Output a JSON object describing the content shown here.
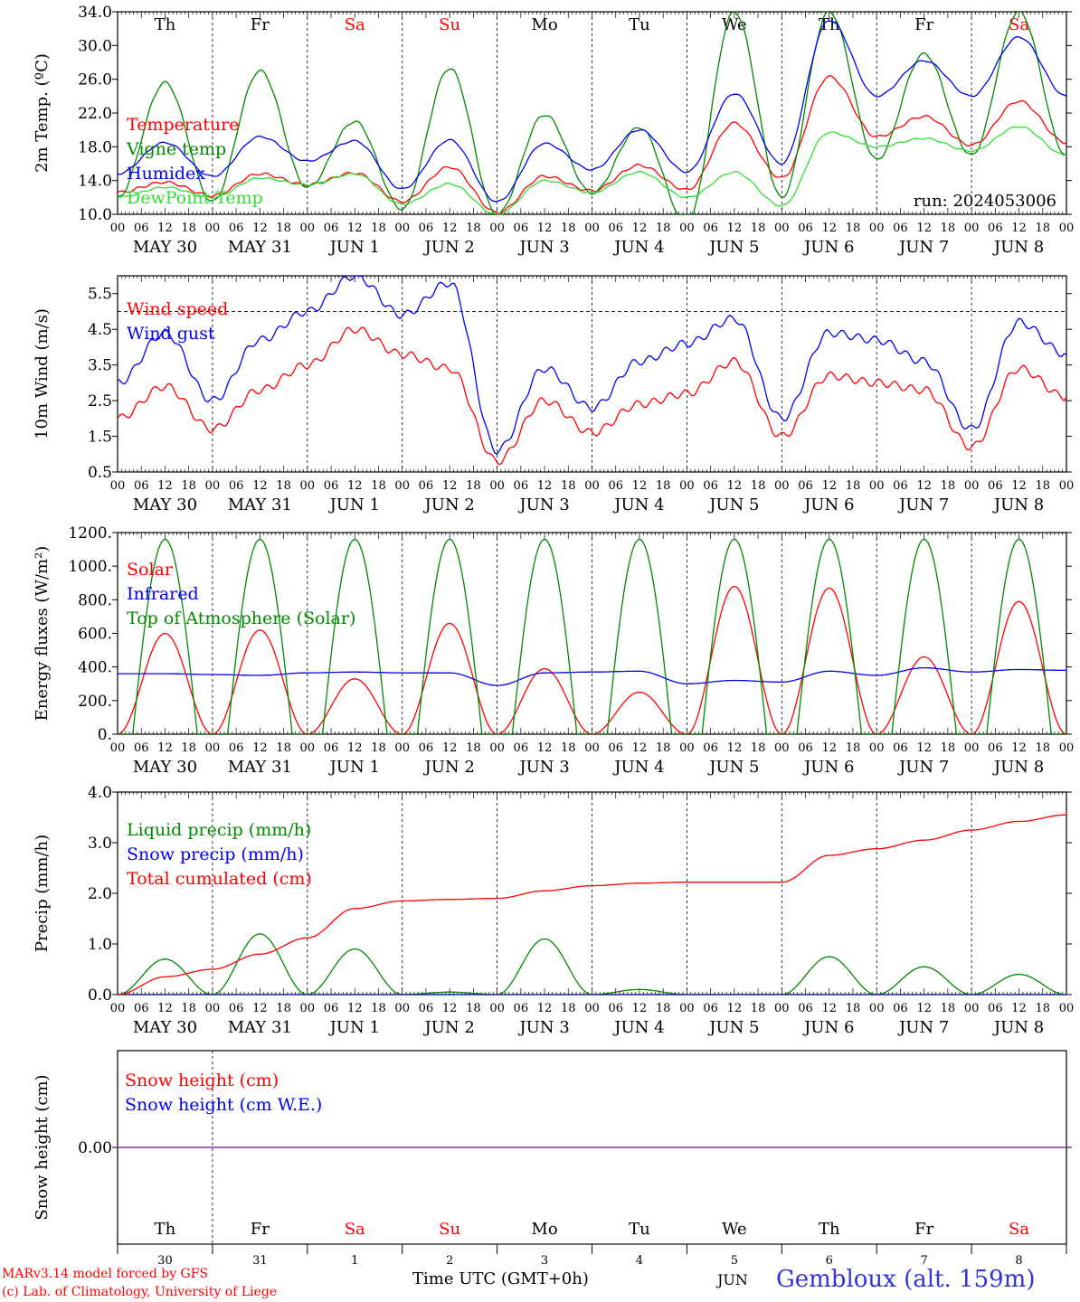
{
  "footer": {
    "credit_line1": "MARv3.14 model forced by GFS",
    "credit_line2": "(c) Lab. of Climatology, University of Liege",
    "xlabel": "Time UTC (GMT+0h)",
    "month_label": "JUN",
    "station": "Gembloux (alt. 159m)"
  },
  "axis": {
    "hours": [
      "00",
      "06",
      "12",
      "18"
    ],
    "day_names": [
      "Th",
      "Fr",
      "Sa",
      "Su",
      "Mo",
      "Tu",
      "We",
      "Th",
      "Fr",
      "Sa"
    ],
    "weekend_days": [
      2,
      3,
      9
    ],
    "dates": [
      "MAY 30",
      "MAY 31",
      "JUN  1",
      "JUN  2",
      "JUN  3",
      "JUN  4",
      "JUN  5",
      "JUN  6",
      "JUN  7",
      "JUN  8"
    ],
    "short_dates": [
      "30",
      "31",
      "1",
      "2",
      "3",
      "4",
      "5",
      "6",
      "7",
      "8"
    ]
  },
  "colors": {
    "red": "#ff0000",
    "green": "#008800",
    "blue": "#0000ee",
    "lightgreen": "#33dd33",
    "purple": "#883399"
  },
  "chart_data": [
    {
      "type": "line",
      "ylabel": "2m Temp. (ºC)",
      "ylim": [
        10.0,
        34.0
      ],
      "yticks": [
        "10.0",
        "14.0",
        "18.0",
        "22.0",
        "26.0",
        "30.0",
        "34.0"
      ],
      "annotation": "run: 2024053006",
      "x_days": [
        0,
        0.5,
        1,
        1.5,
        2,
        2.5,
        3,
        3.5,
        4,
        4.5,
        5,
        5.5,
        6,
        6.5,
        7,
        7.5,
        8,
        8.5,
        9,
        9.5,
        10
      ],
      "series": [
        {
          "name": "Temperature",
          "color": "#ff0000",
          "values": [
            12.6,
            13.8,
            12.2,
            14.8,
            13.5,
            14.9,
            11.5,
            15.6,
            10.2,
            14.5,
            12.8,
            15.8,
            12.9,
            20.8,
            14.3,
            26.3,
            19.2,
            21.6,
            18.2,
            23.4,
            18.5
          ]
        },
        {
          "name": "Vigne temp",
          "color": "#008800",
          "values": [
            12.0,
            25.6,
            11.5,
            27.0,
            13.2,
            21.0,
            10.6,
            27.3,
            10.0,
            21.8,
            12.5,
            20.3,
            9.0,
            34.0,
            12.0,
            34.0,
            16.5,
            29.0,
            17.0,
            34.0,
            17.0
          ]
        },
        {
          "name": "Humidex",
          "color": "#0000ee",
          "values": [
            14.8,
            18.5,
            14.5,
            19.2,
            16.3,
            18.7,
            13.0,
            18.8,
            11.5,
            18.4,
            15.3,
            20.0,
            15.0,
            24.3,
            16.0,
            33.0,
            24.0,
            28.2,
            24.0,
            31.0,
            24.0
          ]
        },
        {
          "name": "DewPoint Temp",
          "color": "#33dd33",
          "values": [
            12.0,
            13.2,
            12.0,
            14.3,
            13.5,
            14.8,
            11.2,
            13.6,
            10.0,
            14.0,
            12.6,
            15.0,
            12.0,
            15.0,
            11.0,
            19.7,
            18.0,
            19.0,
            17.5,
            20.4,
            17.0
          ]
        }
      ]
    },
    {
      "type": "line",
      "ylabel": "10m Wind (m/s)",
      "ylim": [
        0.5,
        6.0
      ],
      "yticks": [
        "0.5",
        "1.5",
        "2.5",
        "3.5",
        "4.5",
        "5.5"
      ],
      "ref_line": 5.0,
      "x_days": [
        0,
        0.5,
        1,
        1.5,
        2,
        2.5,
        3,
        3.5,
        4,
        4.5,
        5,
        5.5,
        6,
        6.5,
        7,
        7.5,
        8,
        8.5,
        9,
        9.5,
        10
      ],
      "series": [
        {
          "name": "Wind speed",
          "color": "#ff0000",
          "values": [
            2.0,
            2.9,
            1.7,
            2.8,
            3.5,
            4.5,
            3.8,
            3.4,
            0.8,
            2.5,
            1.6,
            2.4,
            2.7,
            3.6,
            1.5,
            3.2,
            3.0,
            2.8,
            1.2,
            3.4,
            2.6
          ]
        },
        {
          "name": "Wind gust",
          "color": "#0000ee",
          "values": [
            3.0,
            4.4,
            2.5,
            4.2,
            5.0,
            6.0,
            4.9,
            5.8,
            1.1,
            3.4,
            2.3,
            3.6,
            4.1,
            4.8,
            2.0,
            4.4,
            4.2,
            3.6,
            1.7,
            4.7,
            3.8
          ]
        }
      ]
    },
    {
      "type": "line",
      "ylabel": "Energy fluxes (W/m²)",
      "ylim": [
        0,
        1200
      ],
      "yticks": [
        "0.",
        "200.",
        "400.",
        "600.",
        "800.",
        "1000.",
        "1200."
      ],
      "x_days": [
        0,
        0.5,
        1,
        1.5,
        2,
        2.5,
        3,
        3.5,
        4,
        4.5,
        5,
        5.5,
        6,
        6.5,
        7,
        7.5,
        8,
        8.5,
        9,
        9.5,
        10
      ],
      "series": [
        {
          "name": "Solar",
          "color": "#ff0000",
          "values": [
            0,
            600,
            0,
            620,
            0,
            330,
            0,
            660,
            0,
            390,
            0,
            250,
            0,
            880,
            0,
            870,
            0,
            460,
            0,
            790,
            0
          ]
        },
        {
          "name": "Infrared",
          "color": "#0000ee",
          "values": [
            360,
            360,
            355,
            350,
            365,
            370,
            365,
            365,
            290,
            365,
            370,
            375,
            300,
            320,
            310,
            375,
            350,
            395,
            370,
            385,
            380
          ]
        },
        {
          "name": "Top of Atmosphere (Solar)",
          "color": "#008800",
          "peak": 1160
        }
      ]
    },
    {
      "type": "line",
      "ylabel": "Precip (mm/h)",
      "ylim": [
        0.0,
        4.0
      ],
      "yticks": [
        "0.0",
        "1.0",
        "2.0",
        "3.0",
        "4.0"
      ],
      "x_days": [
        0,
        0.5,
        1,
        1.5,
        2,
        2.5,
        3,
        3.5,
        4,
        4.5,
        5,
        5.5,
        6,
        6.5,
        7,
        7.5,
        8,
        8.5,
        9,
        9.5,
        10
      ],
      "series": [
        {
          "name": "Liquid precip (mm/h)",
          "color": "#008800",
          "values": [
            0.0,
            0.7,
            0.0,
            1.2,
            0.0,
            0.9,
            0.0,
            0.05,
            0.0,
            1.1,
            0.0,
            0.1,
            0.0,
            0.0,
            0.0,
            0.75,
            0.0,
            0.55,
            0.0,
            0.4,
            0.0
          ]
        },
        {
          "name": "Snow precip (mm/h)",
          "color": "#0000ee",
          "values": [
            0,
            0,
            0,
            0,
            0,
            0,
            0,
            0,
            0,
            0,
            0,
            0,
            0,
            0,
            0,
            0,
            0,
            0,
            0,
            0,
            0
          ]
        },
        {
          "name": "Total cumulated (cm)",
          "color": "#ff0000",
          "values": [
            0.0,
            0.35,
            0.5,
            0.8,
            1.12,
            1.7,
            1.85,
            1.88,
            1.9,
            2.05,
            2.15,
            2.2,
            2.22,
            2.22,
            2.22,
            2.75,
            2.88,
            3.05,
            3.25,
            3.42,
            3.55
          ]
        }
      ]
    },
    {
      "type": "line",
      "ylabel": "Snow height (cm)",
      "yticks": [
        "0.00"
      ],
      "series": [
        {
          "name": "Snow height (cm)",
          "color": "#ff0000",
          "values": [
            0,
            0
          ]
        },
        {
          "name": "Snow height (cm W.E.)",
          "color": "#0000ee",
          "values": [
            0,
            0
          ]
        }
      ]
    }
  ]
}
